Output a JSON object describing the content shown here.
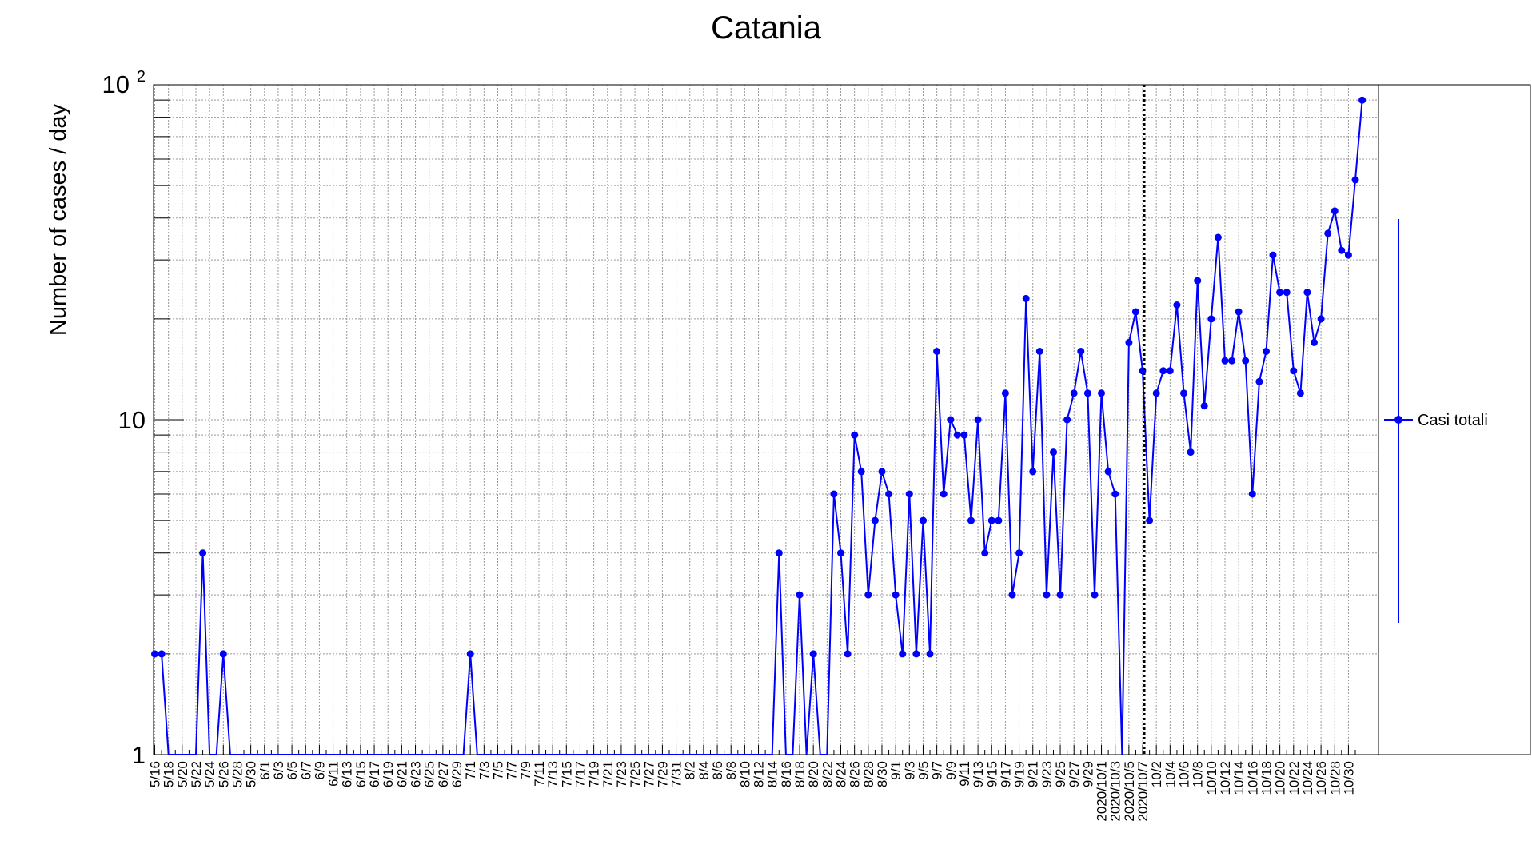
{
  "chart_data": {
    "type": "line",
    "title": "Catania",
    "ylabel": "Number of cases / day",
    "xlabel": "",
    "y_scale": "log",
    "ylim": [
      1,
      100
    ],
    "y_ticks": [
      {
        "value": 1,
        "label": "1"
      },
      {
        "value": 10,
        "label": "10"
      },
      {
        "value": 100,
        "label": "10",
        "exponent": "2"
      }
    ],
    "grid": true,
    "legend": "right",
    "x_start": "5/16",
    "x_tick_labels": [
      "5/16",
      "5/18",
      "5/20",
      "5/22",
      "5/24",
      "5/26",
      "5/28",
      "5/30",
      "6/1",
      "6/3",
      "6/5",
      "6/7",
      "6/9",
      "6/11",
      "6/13",
      "6/15",
      "6/17",
      "6/19",
      "6/21",
      "6/23",
      "6/25",
      "6/27",
      "6/29",
      "7/1",
      "7/3",
      "7/5",
      "7/7",
      "7/9",
      "7/11",
      "7/13",
      "7/15",
      "7/17",
      "7/19",
      "7/21",
      "7/23",
      "7/25",
      "7/27",
      "7/29",
      "7/31",
      "8/2",
      "8/4",
      "8/6",
      "8/8",
      "8/10",
      "8/12",
      "8/14",
      "8/16",
      "8/18",
      "8/20",
      "8/22",
      "8/24",
      "8/26",
      "8/28",
      "8/30",
      "9/1",
      "9/3",
      "9/5",
      "9/7",
      "9/9",
      "9/11",
      "9/13",
      "9/15",
      "9/17",
      "9/19",
      "9/21",
      "9/23",
      "9/25",
      "9/27",
      "9/29",
      "2020/10/1",
      "2020/10/3",
      "2020/10/5",
      "2020/10/7",
      "10/2",
      "10/4",
      "10/6",
      "10/8",
      "10/10",
      "10/12",
      "10/14",
      "10/16",
      "10/18",
      "10/20",
      "10/22",
      "10/24",
      "10/26",
      "10/28",
      "10/30"
    ],
    "marker_date": "2020/10/7",
    "series": [
      {
        "name": "Casi totali",
        "color": "#0000ff",
        "values": [
          2,
          2,
          0,
          0,
          0,
          0,
          0,
          4,
          0,
          0,
          2,
          0,
          0,
          0,
          0,
          0,
          0,
          0,
          0,
          0,
          0,
          0,
          0,
          0,
          0,
          0,
          0,
          0,
          0,
          0,
          0,
          0,
          0,
          0,
          0,
          0,
          0,
          0,
          0,
          0,
          0,
          0,
          0,
          0,
          0,
          0,
          2,
          0,
          0,
          0,
          0,
          0,
          0,
          0,
          0,
          0,
          0,
          0,
          0,
          0,
          0,
          0,
          0,
          0,
          0,
          0,
          0,
          0,
          0,
          0,
          0,
          0,
          0,
          0,
          0,
          0,
          0,
          0,
          0,
          0,
          0,
          0,
          0,
          0,
          0,
          0,
          0,
          0,
          0,
          0,
          0,
          4,
          0,
          0,
          3,
          0,
          2,
          0,
          0,
          6,
          4,
          2,
          9,
          7,
          3,
          5,
          7,
          6,
          3,
          2,
          6,
          2,
          5,
          2,
          16,
          6,
          10,
          9,
          9,
          5,
          10,
          4,
          5,
          5,
          12,
          3,
          4,
          23,
          7,
          16,
          3,
          8,
          3,
          10,
          12,
          16,
          12,
          3,
          12,
          7,
          6,
          0,
          17,
          21,
          14,
          5,
          12,
          14,
          14,
          22,
          12,
          8,
          26,
          11,
          20,
          35,
          15,
          15,
          21,
          15,
          6,
          13,
          16,
          31,
          24,
          24,
          14,
          12,
          24,
          17,
          20,
          36,
          42,
          32,
          31,
          52,
          90
        ]
      }
    ]
  }
}
